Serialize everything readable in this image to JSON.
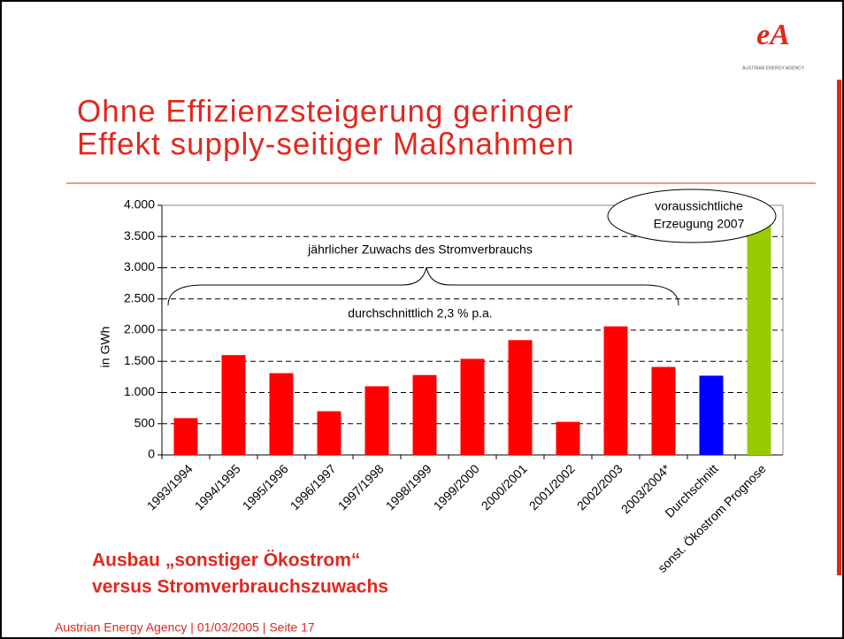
{
  "logo": {
    "mark": "eA",
    "name": "AUSTRIAN ENERGY AGENCY"
  },
  "slide_title": [
    "Ohne Effizienzsteigerung geringer",
    "Effekt supply-seitiger Maßnahmen"
  ],
  "subtitle": [
    "Ausbau „sonstiger Ökostrom“",
    "versus Stromverbrauchszuwachs"
  ],
  "footer": "Austrian Energy Agency  | 01/03/2005 | Seite 17",
  "chart_data": {
    "type": "bar",
    "y_label": "in GWh",
    "annotations": {
      "prognose": [
        "voraussichtliche",
        "Erzeugung 2007"
      ],
      "brace_top": "jährlicher Zuwachs des Stromverbrauchs",
      "brace_bottom": "durchschnittlich 2,3 % p.a."
    },
    "categories": [
      "1993/1994",
      "1994/1995",
      "1995/1996",
      "1996/1997",
      "1997/1998",
      "1998/1999",
      "1999/2000",
      "2000/2001",
      "2001/2002",
      "2002/2003",
      "2003/2004*",
      "Durchschnitt",
      "sonst. Ökostrom Prognose"
    ],
    "values": [
      590,
      1600,
      1310,
      700,
      1100,
      1280,
      1540,
      1840,
      530,
      2060,
      1410,
      1270,
      4000
    ],
    "colors": [
      "#ff0000",
      "#ff0000",
      "#ff0000",
      "#ff0000",
      "#ff0000",
      "#ff0000",
      "#ff0000",
      "#ff0000",
      "#ff0000",
      "#ff0000",
      "#ff0000",
      "#0000ff",
      "#99cc00"
    ],
    "ylim": [
      0,
      4000
    ],
    "yticks": [
      0,
      500,
      {
        "value": 1000,
        "label": "1.000"
      },
      {
        "value": 1500,
        "label": "1.500"
      },
      {
        "value": 2000,
        "label": "2.000"
      },
      {
        "value": 2500,
        "label": "2.500"
      },
      {
        "value": 3000,
        "label": "3.000"
      },
      {
        "value": 3500,
        "label": "3.500"
      },
      {
        "value": 4000,
        "label": "4.000"
      }
    ],
    "grid": true
  }
}
